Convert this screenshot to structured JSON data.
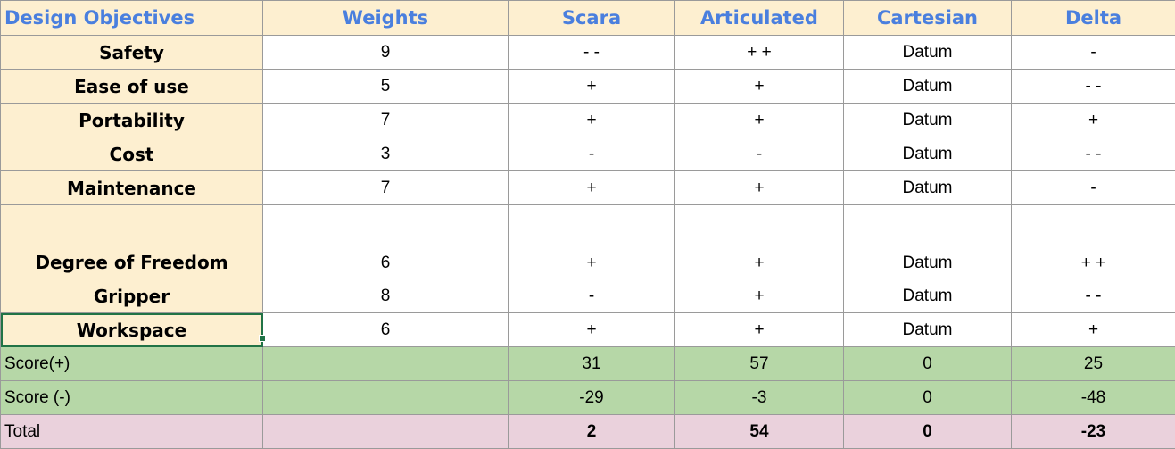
{
  "headers": [
    "Design Objectives",
    "Weights",
    "Scara",
    "Articulated",
    "Cartesian",
    "Delta"
  ],
  "objectives": [
    {
      "name": "Safety",
      "weight": "9",
      "scara": "- -",
      "articulated": "+ +",
      "cartesian": "Datum",
      "delta": "-"
    },
    {
      "name": "Ease of use",
      "weight": "5",
      "scara": "+",
      "articulated": "+",
      "cartesian": "Datum",
      "delta": "- -"
    },
    {
      "name": "Portability",
      "weight": "7",
      "scara": "+",
      "articulated": "+",
      "cartesian": "Datum",
      "delta": "+"
    },
    {
      "name": "Cost",
      "weight": "3",
      "scara": "-",
      "articulated": "-",
      "cartesian": "Datum",
      "delta": "- -"
    },
    {
      "name": "Maintenance",
      "weight": "7",
      "scara": "+",
      "articulated": "+",
      "cartesian": "Datum",
      "delta": "-"
    },
    {
      "name": "Degree of Freedom",
      "weight": "6",
      "scara": "+",
      "articulated": "+",
      "cartesian": "Datum",
      "delta": "+ +"
    },
    {
      "name": "Gripper",
      "weight": "8",
      "scara": "-",
      "articulated": "+",
      "cartesian": "Datum",
      "delta": "- -"
    },
    {
      "name": "Workspace",
      "weight": "6",
      "scara": "+",
      "articulated": "+",
      "cartesian": "Datum",
      "delta": "+"
    }
  ],
  "score_plus": {
    "label": "Score(+)",
    "scara": "31",
    "articulated": "57",
    "cartesian": "0",
    "delta": "25"
  },
  "score_minus": {
    "label": "Score (-)",
    "scara": "-29",
    "articulated": "-3",
    "cartesian": "0",
    "delta": "-48"
  },
  "total": {
    "label": "Total",
    "scara": "2",
    "articulated": "54",
    "cartesian": "0",
    "delta": "-23"
  }
}
